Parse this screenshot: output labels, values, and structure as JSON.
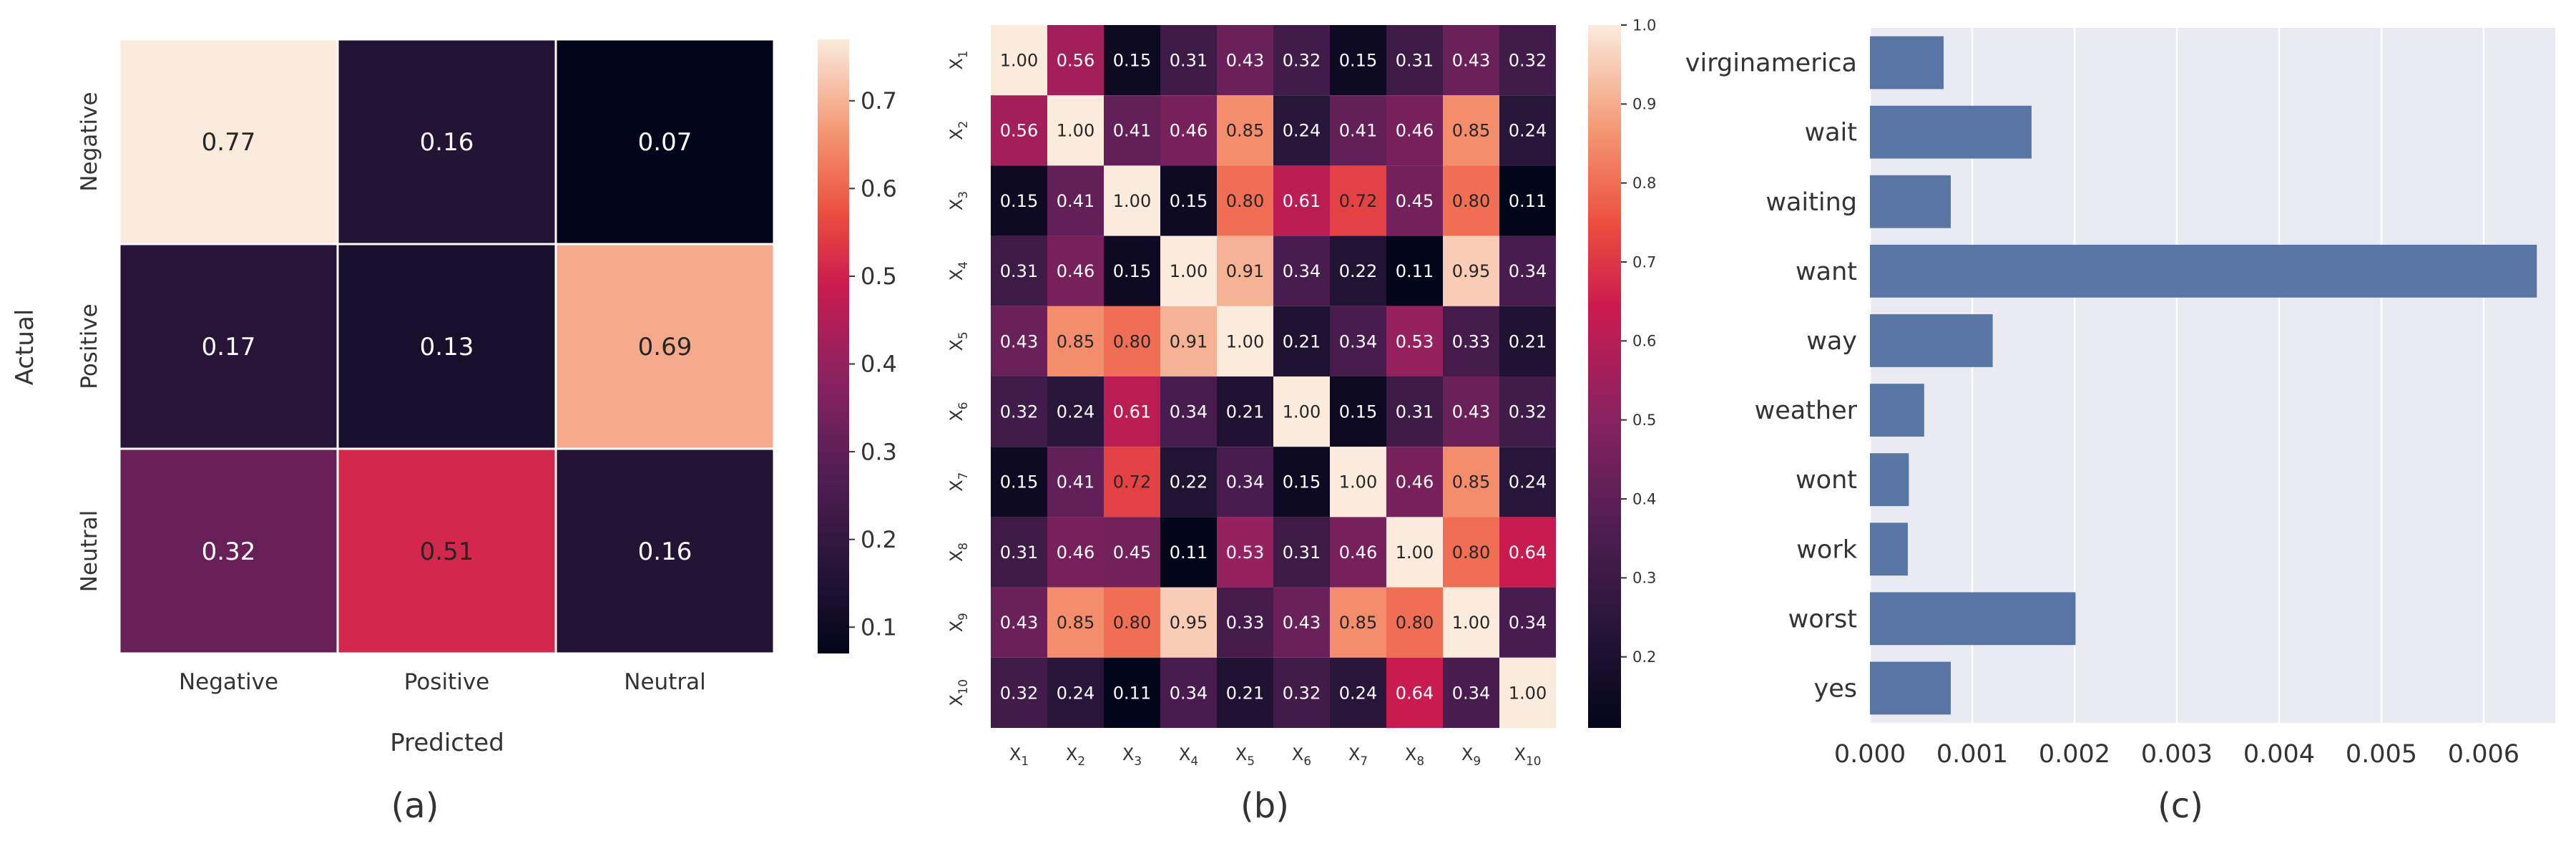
{
  "chart_data": [
    {
      "type": "heatmap",
      "panel_label": "(a)",
      "xlabel": "Predicted",
      "ylabel": "Actual",
      "x_categories": [
        "Negative",
        "Positive",
        "Neutral"
      ],
      "y_categories": [
        "Negative",
        "Positive",
        "Neutral"
      ],
      "values": [
        [
          0.77,
          0.16,
          0.07
        ],
        [
          0.17,
          0.13,
          0.69
        ],
        [
          0.32,
          0.51,
          0.16
        ]
      ],
      "colormap": "rocket",
      "colorbar": {
        "range": [
          0.07,
          0.77
        ],
        "ticks": [
          0.1,
          0.2,
          0.3,
          0.4,
          0.5,
          0.6,
          0.7
        ]
      }
    },
    {
      "type": "heatmap",
      "panel_label": "(b)",
      "x_categories": [
        {
          "base": "X",
          "sub": "1"
        },
        {
          "base": "X",
          "sub": "2"
        },
        {
          "base": "X",
          "sub": "3"
        },
        {
          "base": "X",
          "sub": "4"
        },
        {
          "base": "X",
          "sub": "5"
        },
        {
          "base": "X",
          "sub": "6"
        },
        {
          "base": "X",
          "sub": "7"
        },
        {
          "base": "X",
          "sub": "8"
        },
        {
          "base": "X",
          "sub": "9"
        },
        {
          "base": "X",
          "sub": "10"
        }
      ],
      "y_categories": [
        {
          "base": "X",
          "sub": "1"
        },
        {
          "base": "X",
          "sub": "2"
        },
        {
          "base": "X",
          "sub": "3"
        },
        {
          "base": "X",
          "sub": "4"
        },
        {
          "base": "X",
          "sub": "5"
        },
        {
          "base": "X",
          "sub": "6"
        },
        {
          "base": "X",
          "sub": "7"
        },
        {
          "base": "X",
          "sub": "8"
        },
        {
          "base": "X",
          "sub": "9"
        },
        {
          "base": "X",
          "sub": "10"
        }
      ],
      "values": [
        [
          1.0,
          0.56,
          0.15,
          0.31,
          0.43,
          0.32,
          0.15,
          0.31,
          0.43,
          0.32
        ],
        [
          0.56,
          1.0,
          0.41,
          0.46,
          0.85,
          0.24,
          0.41,
          0.46,
          0.85,
          0.24
        ],
        [
          0.15,
          0.41,
          1.0,
          0.15,
          0.8,
          0.61,
          0.72,
          0.45,
          0.8,
          0.11
        ],
        [
          0.31,
          0.46,
          0.15,
          1.0,
          0.91,
          0.34,
          0.22,
          0.11,
          0.95,
          0.34
        ],
        [
          0.43,
          0.85,
          0.8,
          0.91,
          1.0,
          0.21,
          0.34,
          0.53,
          0.33,
          0.21
        ],
        [
          0.32,
          0.24,
          0.61,
          0.34,
          0.21,
          1.0,
          0.15,
          0.31,
          0.43,
          0.32
        ],
        [
          0.15,
          0.41,
          0.72,
          0.22,
          0.34,
          0.15,
          1.0,
          0.46,
          0.85,
          0.24
        ],
        [
          0.31,
          0.46,
          0.45,
          0.11,
          0.53,
          0.31,
          0.46,
          1.0,
          0.8,
          0.64
        ],
        [
          0.43,
          0.85,
          0.8,
          0.95,
          0.33,
          0.43,
          0.85,
          0.8,
          1.0,
          0.34
        ],
        [
          0.32,
          0.24,
          0.11,
          0.34,
          0.21,
          0.32,
          0.24,
          0.64,
          0.34,
          1.0
        ]
      ],
      "colormap": "rocket",
      "colorbar": {
        "range": [
          0.11,
          1.0
        ],
        "ticks": [
          0.2,
          0.3,
          0.4,
          0.5,
          0.6,
          0.7,
          0.8,
          0.9,
          1.0
        ]
      }
    },
    {
      "type": "bar",
      "orientation": "horizontal",
      "panel_label": "(c)",
      "categories": [
        "virginamerica",
        "wait",
        "waiting",
        "want",
        "way",
        "weather",
        "wont",
        "work",
        "worst",
        "yes"
      ],
      "values": [
        0.00072,
        0.00158,
        0.00079,
        0.00652,
        0.0012,
        0.00053,
        0.00038,
        0.00037,
        0.00201,
        0.00079
      ],
      "xlim": [
        0,
        0.0067
      ],
      "xticks": [
        0.0,
        0.001,
        0.002,
        0.003,
        0.004,
        0.005,
        0.006
      ],
      "xtick_labels": [
        "0.000",
        "0.001",
        "0.002",
        "0.003",
        "0.004",
        "0.005",
        "0.006"
      ],
      "grid": true,
      "colors": {
        "bar": "#5975a4",
        "background": "#eaeaf2",
        "grid": "#ffffff"
      }
    }
  ]
}
